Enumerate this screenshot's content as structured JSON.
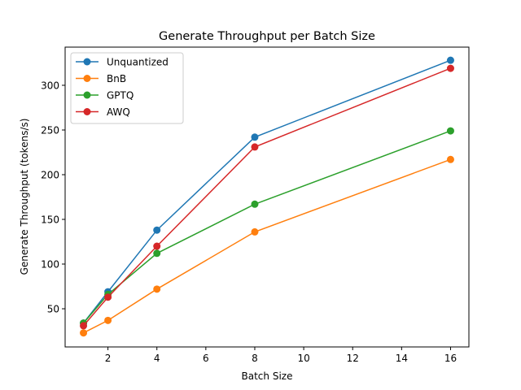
{
  "chart_data": {
    "type": "line",
    "title": "Generate Throughput per Batch Size",
    "xlabel": "Batch Size",
    "ylabel": "Generate Throughput (tokens/s)",
    "xlim": [
      0.25,
      16.75
    ],
    "ylim": [
      7.3,
      342.7
    ],
    "xticks": [
      2,
      4,
      6,
      8,
      10,
      12,
      14,
      16
    ],
    "yticks": [
      50,
      100,
      150,
      200,
      250,
      300
    ],
    "grid": false,
    "legend_position": "top-left",
    "x": [
      1,
      2,
      4,
      8,
      16
    ],
    "series": [
      {
        "name": "Unquantized",
        "color": "#1f77b4",
        "values": [
          34,
          69,
          138,
          242,
          328
        ]
      },
      {
        "name": "BnB",
        "color": "#ff7f0e",
        "values": [
          23,
          37,
          72,
          136,
          217
        ]
      },
      {
        "name": "GPTQ",
        "color": "#2ca02c",
        "values": [
          34,
          66,
          112,
          167,
          249
        ]
      },
      {
        "name": "AWQ",
        "color": "#d62728",
        "values": [
          31,
          63,
          120,
          231,
          319
        ]
      }
    ]
  }
}
